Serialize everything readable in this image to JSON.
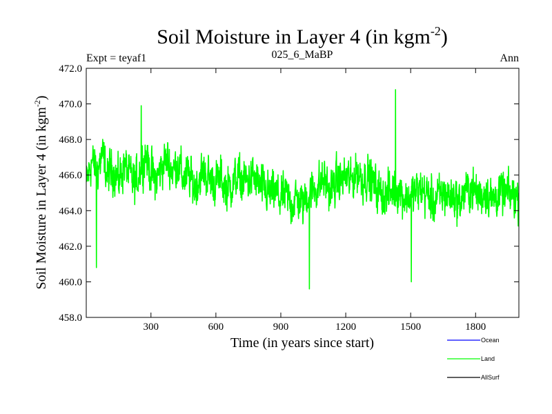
{
  "chart_data": {
    "type": "line",
    "title": "Soil Moisture in Layer 4 (in kgm",
    "title_sup": "-2",
    "title_end": ")",
    "subtitle_left": "Expt = teyaf1",
    "subtitle_center": "025_6_MaBP",
    "subtitle_right": "Ann",
    "xlabel": "Time (in years since start)",
    "ylabel": "Soil Moisture in Layer 4 (in kgm",
    "ylabel_sup": "-2",
    "ylabel_end": ")",
    "xlim": [
      1,
      2000
    ],
    "ylim": [
      458.0,
      472.0
    ],
    "xticks": [
      300,
      600,
      900,
      1200,
      1500,
      1800
    ],
    "yticks": [
      458.0,
      460.0,
      462.0,
      464.0,
      466.0,
      468.0,
      470.0,
      472.0
    ],
    "ytick_labels": [
      "458.0",
      "460.0",
      "462.0",
      "464.0",
      "466.0",
      "468.0",
      "470.0",
      "472.0"
    ],
    "xtick_labels": [
      "300",
      "600",
      "900",
      "1200",
      "1500",
      "1800"
    ],
    "legend_position": "below-right",
    "series": [
      {
        "name": "Ocean",
        "color": "#0000ff",
        "values": []
      },
      {
        "name": "Land",
        "color": "#00ff00",
        "x": [
          1,
          25,
          50,
          75,
          100,
          125,
          150,
          175,
          200,
          225,
          250,
          275,
          300,
          325,
          350,
          375,
          400,
          425,
          450,
          475,
          500,
          525,
          550,
          575,
          600,
          625,
          650,
          675,
          700,
          725,
          750,
          775,
          800,
          825,
          850,
          875,
          900,
          925,
          950,
          975,
          1000,
          1025,
          1050,
          1075,
          1100,
          1125,
          1150,
          1175,
          1200,
          1225,
          1250,
          1275,
          1300,
          1325,
          1350,
          1375,
          1400,
          1425,
          1450,
          1475,
          1500,
          1525,
          1550,
          1575,
          1600,
          1625,
          1650,
          1675,
          1700,
          1725,
          1750,
          1775,
          1800,
          1825,
          1850,
          1875,
          1900,
          1925,
          1950,
          1975,
          2000
        ],
        "values": [
          465.5,
          466.8,
          466.2,
          467.1,
          465.9,
          466.4,
          465.6,
          466.6,
          466.0,
          465.4,
          466.3,
          467.2,
          466.1,
          465.7,
          466.5,
          466.9,
          466.2,
          466.7,
          465.8,
          466.0,
          465.3,
          465.9,
          466.1,
          465.7,
          465.6,
          465.8,
          465.2,
          465.5,
          465.9,
          465.6,
          465.7,
          465.9,
          465.4,
          465.1,
          464.9,
          465.0,
          464.6,
          464.9,
          464.4,
          464.7,
          464.3,
          465.0,
          465.2,
          465.4,
          465.8,
          465.1,
          465.5,
          465.7,
          465.9,
          465.6,
          466.2,
          465.8,
          466.0,
          465.5,
          465.1,
          464.8,
          464.9,
          465.3,
          465.1,
          464.7,
          464.8,
          465.0,
          465.2,
          464.9,
          464.5,
          464.7,
          465.0,
          464.8,
          464.9,
          464.4,
          465.1,
          465.3,
          465.0,
          464.8,
          465.2,
          464.6,
          464.9,
          465.0,
          464.8,
          464.9,
          464.7
        ],
        "noise_amplitude": 1.6,
        "notable_points": [
          {
            "x": 1430,
            "y": 470.8
          },
          {
            "x": 1032,
            "y": 459.6
          },
          {
            "x": 1503,
            "y": 460.0
          },
          {
            "x": 48,
            "y": 460.8
          },
          {
            "x": 255,
            "y": 469.9
          }
        ]
      },
      {
        "name": "AllSurf",
        "color": "#000000",
        "values": []
      }
    ]
  }
}
